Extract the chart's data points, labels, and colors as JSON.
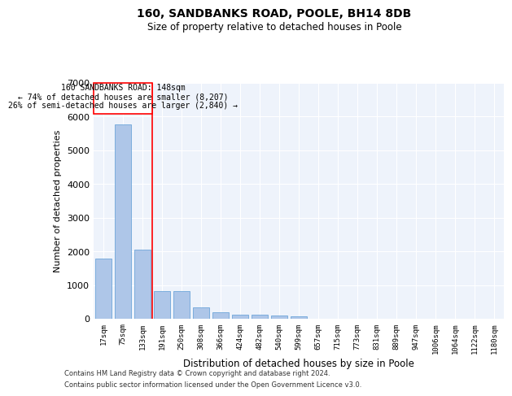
{
  "title_line1": "160, SANDBANKS ROAD, POOLE, BH14 8DB",
  "title_line2": "Size of property relative to detached houses in Poole",
  "xlabel": "Distribution of detached houses by size in Poole",
  "ylabel": "Number of detached properties",
  "bar_color": "#aec6e8",
  "bar_edge_color": "#5b9bd5",
  "categories": [
    "17sqm",
    "75sqm",
    "133sqm",
    "191sqm",
    "250sqm",
    "308sqm",
    "366sqm",
    "424sqm",
    "482sqm",
    "540sqm",
    "599sqm",
    "657sqm",
    "715sqm",
    "773sqm",
    "831sqm",
    "889sqm",
    "947sqm",
    "1006sqm",
    "1064sqm",
    "1122sqm",
    "1180sqm"
  ],
  "values": [
    1780,
    5780,
    2060,
    810,
    810,
    340,
    200,
    120,
    110,
    100,
    75,
    0,
    0,
    0,
    0,
    0,
    0,
    0,
    0,
    0,
    0
  ],
  "ylim": [
    0,
    7000
  ],
  "yticks": [
    0,
    1000,
    2000,
    3000,
    4000,
    5000,
    6000,
    7000
  ],
  "annotation_text_line1": "160 SANDBANKS ROAD: 148sqm",
  "annotation_text_line2": "← 74% of detached houses are smaller (8,207)",
  "annotation_text_line3": "26% of semi-detached houses are larger (2,840) →",
  "red_line_x": 2.5,
  "footer_line1": "Contains HM Land Registry data © Crown copyright and database right 2024.",
  "footer_line2": "Contains public sector information licensed under the Open Government Licence v3.0.",
  "background_color": "#eef3fb",
  "grid_color": "#ffffff",
  "fig_background": "#ffffff"
}
